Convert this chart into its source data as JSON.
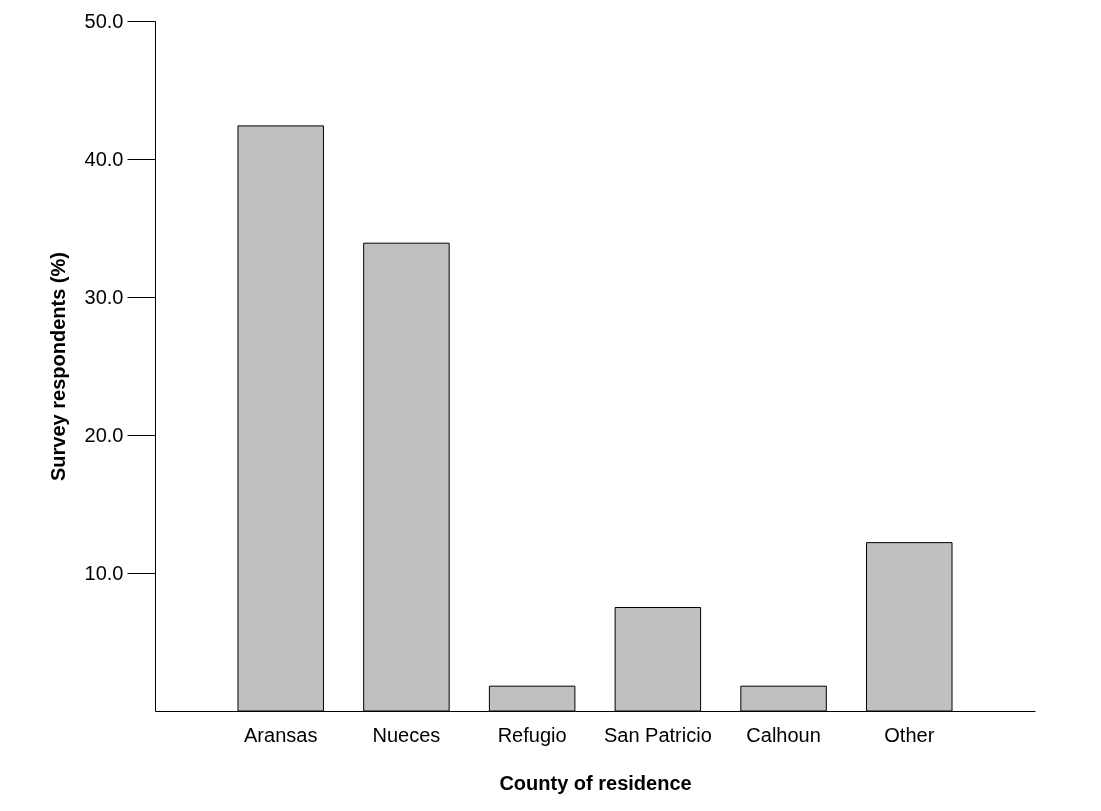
{
  "chart_data": {
    "type": "bar",
    "xlabel": "County of residence",
    "ylabel": "Survey respondents (%)",
    "categories": [
      "Aransas",
      "Nueces",
      "Refugio",
      "San Patricio",
      "Calhoun",
      "Other"
    ],
    "values": [
      42.4,
      33.9,
      1.8,
      7.5,
      1.8,
      12.2
    ],
    "color": "#c0c0c0",
    "ylim": [
      0,
      50
    ],
    "yticks": [
      {
        "value": 10,
        "label": "10.0"
      },
      {
        "value": 20,
        "label": "20.0"
      },
      {
        "value": 30,
        "label": "30.0"
      },
      {
        "value": 40,
        "label": "40.0"
      },
      {
        "value": 50,
        "label": "50.0"
      }
    ],
    "grid": false
  }
}
